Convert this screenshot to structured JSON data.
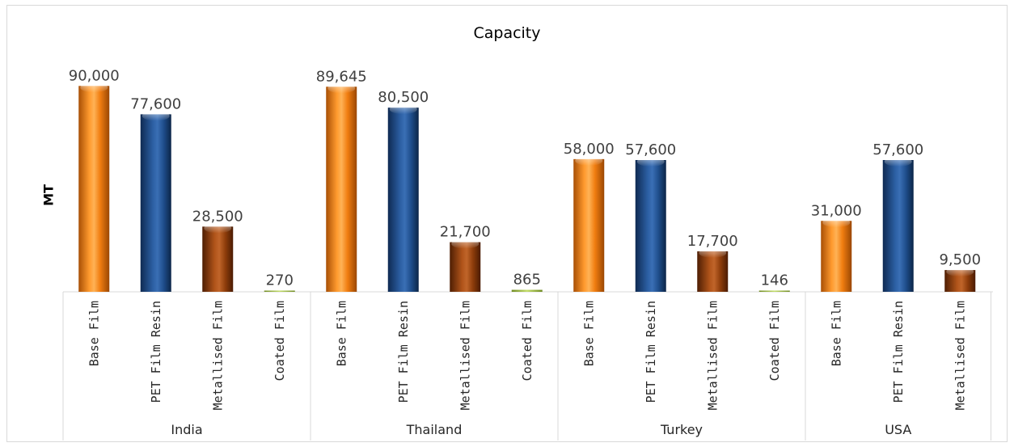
{
  "chart_data": {
    "type": "bar",
    "title": "Capacity",
    "ylabel": "MT",
    "xlabel": "",
    "ylim": [
      0,
      100000
    ],
    "grid": false,
    "legend": "none",
    "groups": [
      {
        "name": "India",
        "items": [
          {
            "label": "Base Film",
            "value": 90000,
            "display": "90,000",
            "kind": "orange"
          },
          {
            "label": "PET Film Resin",
            "value": 77600,
            "display": "77,600",
            "kind": "blue"
          },
          {
            "label": "Metallised Film",
            "value": 28500,
            "display": "28,500",
            "kind": "brown"
          },
          {
            "label": "Coated Film",
            "value": 270,
            "display": "270",
            "kind": "green"
          }
        ]
      },
      {
        "name": "Thailand",
        "items": [
          {
            "label": "Base Film",
            "value": 89645,
            "display": "89,645",
            "kind": "orange"
          },
          {
            "label": "PET Film Resin",
            "value": 80500,
            "display": "80,500",
            "kind": "blue"
          },
          {
            "label": "Metallised Film",
            "value": 21700,
            "display": "21,700",
            "kind": "brown"
          },
          {
            "label": "Coated Film",
            "value": 865,
            "display": "865",
            "kind": "green"
          }
        ]
      },
      {
        "name": "Turkey",
        "items": [
          {
            "label": "Base Film",
            "value": 58000,
            "display": "58,000",
            "kind": "orange"
          },
          {
            "label": "PET Film Resin",
            "value": 57600,
            "display": "57,600",
            "kind": "blue"
          },
          {
            "label": "Metallised Film",
            "value": 17700,
            "display": "17,700",
            "kind": "brown"
          },
          {
            "label": "Coated Film",
            "value": 146,
            "display": "146",
            "kind": "green"
          }
        ]
      },
      {
        "name": "USA",
        "items": [
          {
            "label": "Base Film",
            "value": 31000,
            "display": "31,000",
            "kind": "orange"
          },
          {
            "label": "PET Film Resin",
            "value": 57600,
            "display": "57,600",
            "kind": "blue"
          },
          {
            "label": "Metallised Film",
            "value": 9500,
            "display": "9,500",
            "kind": "brown"
          }
        ]
      }
    ],
    "colors": {
      "orange": "#f07d10",
      "blue": "#1f4e8c",
      "brown": "#8e3d0b",
      "green": "#9bbb3b"
    }
  }
}
